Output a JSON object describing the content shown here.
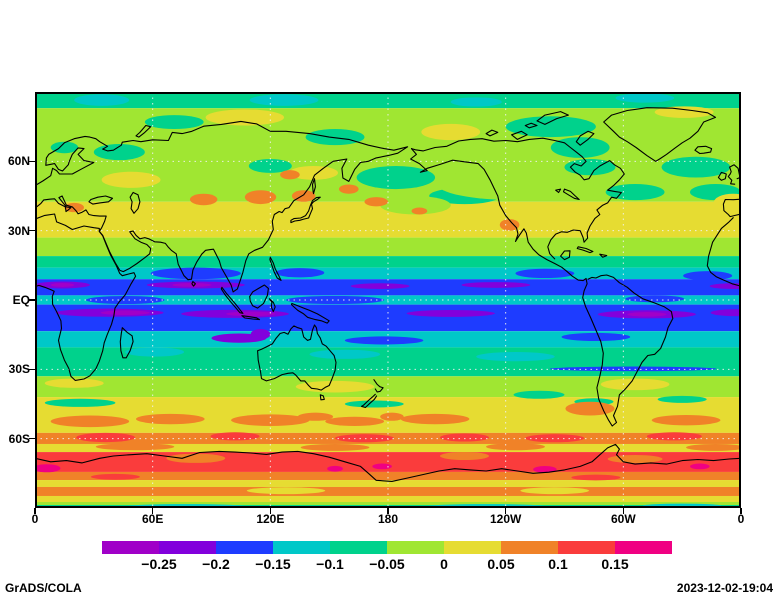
{
  "footer": {
    "left": "GrADS/COLA",
    "right": "2023-12-02-19:04"
  },
  "chart_data": {
    "type": "heatmap",
    "subtype": "filled-contour-world-map",
    "projection": {
      "lon_range": [
        0,
        360
      ],
      "lat_range": [
        -90,
        90
      ]
    },
    "x_ticks": [
      {
        "lon": 0,
        "label": "0"
      },
      {
        "lon": 60,
        "label": "60E"
      },
      {
        "lon": 120,
        "label": "120E"
      },
      {
        "lon": 180,
        "label": "180"
      },
      {
        "lon": 240,
        "label": "120W"
      },
      {
        "lon": 300,
        "label": "60W"
      },
      {
        "lon": 360,
        "label": "0"
      }
    ],
    "y_ticks": [
      {
        "lat": 60,
        "label": "60N"
      },
      {
        "lat": 30,
        "label": "30N"
      },
      {
        "lat": 0,
        "label": "EQ"
      },
      {
        "lat": -30,
        "label": "30S"
      },
      {
        "lat": -60,
        "label": "60S"
      }
    ],
    "gridlines": {
      "lons": [
        60,
        120,
        180,
        240,
        300
      ],
      "lats": [
        60,
        30,
        0,
        -30,
        -60
      ]
    },
    "colorbar": {
      "levels": [
        -0.25,
        -0.2,
        -0.15,
        -0.1,
        -0.05,
        0,
        0.05,
        0.1,
        0.15
      ],
      "labels": [
        "−0.25",
        "−0.2",
        "−0.15",
        "−0.1",
        "−0.05",
        "0",
        "0.05",
        "0.1",
        "0.15"
      ],
      "colors": [
        "#a000c8",
        "#8200dc",
        "#1e3cff",
        "#00c8c8",
        "#00d28c",
        "#a0e632",
        "#e6dc32",
        "#f08228",
        "#fa3c3c",
        "#f00082"
      ]
    },
    "zonal_bands": [
      {
        "lat_from": 90,
        "lat_to": 83,
        "value": -0.075
      },
      {
        "lat_from": 83,
        "lat_to": 42.5,
        "value": -0.025
      },
      {
        "lat_from": 42.5,
        "lat_to": 27,
        "value": 0.025
      },
      {
        "lat_from": 27,
        "lat_to": 19,
        "value": -0.025
      },
      {
        "lat_from": 19,
        "lat_to": 14,
        "value": -0.075
      },
      {
        "lat_from": 14,
        "lat_to": 9,
        "value": -0.125
      },
      {
        "lat_from": 9,
        "lat_to": 2,
        "value": -0.175
      },
      {
        "lat_from": 2,
        "lat_to": -2,
        "value": -0.125
      },
      {
        "lat_from": -2,
        "lat_to": -13.5,
        "value": -0.175
      },
      {
        "lat_from": -13.5,
        "lat_to": -20.5,
        "value": -0.125
      },
      {
        "lat_from": -20.5,
        "lat_to": -33,
        "value": -0.075
      },
      {
        "lat_from": -33,
        "lat_to": -42,
        "value": -0.025
      },
      {
        "lat_from": -42,
        "lat_to": -57.5,
        "value": 0.025
      },
      {
        "lat_from": -57.5,
        "lat_to": -62.3,
        "value": 0.075
      },
      {
        "lat_from": -62.3,
        "lat_to": -65.8,
        "value": 0.025
      },
      {
        "lat_from": -65.8,
        "lat_to": -74.4,
        "value": 0.125
      },
      {
        "lat_from": -74.4,
        "lat_to": -77.9,
        "value": 0.075
      },
      {
        "lat_from": -77.9,
        "lat_to": -80.9,
        "value": 0.025
      },
      {
        "lat_from": -80.9,
        "lat_to": -84.8,
        "value": 0.075
      },
      {
        "lat_from": -84.8,
        "lat_to": -87.4,
        "value": 0.025
      },
      {
        "lat_from": -87.4,
        "lat_to": -88.7,
        "value": -0.025
      },
      {
        "lat_from": -88.7,
        "lat_to": -90,
        "value": -0.075
      }
    ],
    "anomaly_patches": [
      {
        "lon": 34,
        "lat": 86.5,
        "w": 28,
        "h": 5,
        "value": -0.125
      },
      {
        "lon": 127,
        "lat": 86.5,
        "w": 35,
        "h": 5,
        "value": -0.125
      },
      {
        "lon": 225,
        "lat": 85.7,
        "w": 26,
        "h": 4,
        "value": -0.125
      },
      {
        "lon": 311,
        "lat": 87.4,
        "w": 30,
        "h": 4,
        "value": -0.125
      },
      {
        "lon": 43,
        "lat": 64,
        "w": 26,
        "h": 7,
        "value": -0.075
      },
      {
        "lon": 15,
        "lat": 66,
        "w": 14,
        "h": 5,
        "value": -0.075
      },
      {
        "lon": 71,
        "lat": 77,
        "w": 30,
        "h": 6,
        "value": -0.075
      },
      {
        "lon": 153,
        "lat": 70.5,
        "w": 30,
        "h": 7,
        "value": -0.075
      },
      {
        "lon": 184,
        "lat": 53,
        "w": 40,
        "h": 10,
        "value": -0.075
      },
      {
        "lon": 219,
        "lat": 45,
        "w": 36,
        "h": 7,
        "value": -0.075
      },
      {
        "lon": 263,
        "lat": 75,
        "w": 46,
        "h": 9,
        "value": -0.075
      },
      {
        "lon": 278,
        "lat": 66,
        "w": 30,
        "h": 9,
        "value": -0.075
      },
      {
        "lon": 283,
        "lat": 57.5,
        "w": 26,
        "h": 7,
        "value": -0.075
      },
      {
        "lon": 306,
        "lat": 46.7,
        "w": 30,
        "h": 7,
        "value": -0.075
      },
      {
        "lon": 337,
        "lat": 57.5,
        "w": 35,
        "h": 9,
        "value": -0.075
      },
      {
        "lon": 347,
        "lat": 46.7,
        "w": 26,
        "h": 7,
        "value": -0.075
      },
      {
        "lon": 120,
        "lat": 58,
        "w": 22,
        "h": 6,
        "value": -0.075
      },
      {
        "lon": 107,
        "lat": 79,
        "w": 40,
        "h": 7,
        "value": 0.025
      },
      {
        "lon": 212,
        "lat": 72.7,
        "w": 30,
        "h": 7,
        "value": 0.025
      },
      {
        "lon": 331,
        "lat": 81.3,
        "w": 30,
        "h": 5,
        "value": 0.025
      },
      {
        "lon": 356,
        "lat": 42,
        "w": 20,
        "h": 8,
        "value": 0.025
      },
      {
        "lon": 49,
        "lat": 52,
        "w": 30,
        "h": 7,
        "value": 0.025
      },
      {
        "lon": 142,
        "lat": 55,
        "w": 25,
        "h": 6,
        "value": 0.025
      },
      {
        "lon": 245,
        "lat": 50.2,
        "w": 80,
        "h": 14,
        "value": -0.025
      },
      {
        "lon": 194,
        "lat": 41,
        "w": 36,
        "h": 8,
        "value": -0.025
      },
      {
        "lon": 86,
        "lat": 43.5,
        "w": 14,
        "h": 5,
        "value": 0.075
      },
      {
        "lon": 115,
        "lat": 44.5,
        "w": 16,
        "h": 6,
        "value": 0.075
      },
      {
        "lon": 130,
        "lat": 54.2,
        "w": 10,
        "h": 4,
        "value": 0.075
      },
      {
        "lon": 137,
        "lat": 45,
        "w": 12,
        "h": 5,
        "value": 0.075
      },
      {
        "lon": 174,
        "lat": 42.5,
        "w": 12,
        "h": 4,
        "value": 0.075
      },
      {
        "lon": 196,
        "lat": 38.5,
        "w": 8,
        "h": 3,
        "value": 0.075
      },
      {
        "lon": 242,
        "lat": 32.5,
        "w": 10,
        "h": 5,
        "value": 0.075
      },
      {
        "lon": 20,
        "lat": 40,
        "w": 10,
        "h": 4,
        "value": 0.075
      },
      {
        "lon": 160,
        "lat": 48,
        "w": 10,
        "h": 4,
        "value": 0.075
      },
      {
        "lon": 82,
        "lat": 11.5,
        "w": 46,
        "h": 5,
        "value": -0.175
      },
      {
        "lon": 135,
        "lat": 11.8,
        "w": 25,
        "h": 4,
        "value": -0.175
      },
      {
        "lon": 260,
        "lat": 11.5,
        "w": 30,
        "h": 4,
        "value": -0.175
      },
      {
        "lon": 343,
        "lat": 10.5,
        "w": 25,
        "h": 4,
        "value": -0.175
      },
      {
        "lon": 14,
        "lat": 6.5,
        "w": 28,
        "h": 3,
        "value": -0.225
      },
      {
        "lon": 82,
        "lat": 6.5,
        "w": 50,
        "h": 3,
        "value": -0.225
      },
      {
        "lon": 176,
        "lat": 6,
        "w": 30,
        "h": 2.5,
        "value": -0.225
      },
      {
        "lon": 235,
        "lat": 6.5,
        "w": 35,
        "h": 2.5,
        "value": -0.225
      },
      {
        "lon": 356,
        "lat": 6,
        "w": 24,
        "h": 2.5,
        "value": -0.225
      },
      {
        "lon": 80,
        "lat": 6.5,
        "w": 20,
        "h": 1.7,
        "value": -0.275
      },
      {
        "lon": 14,
        "lat": 6.5,
        "w": 12,
        "h": 1.7,
        "value": -0.275
      },
      {
        "lon": 46,
        "lat": 0,
        "w": 40,
        "h": 3.5,
        "value": -0.175
      },
      {
        "lon": 153,
        "lat": 0,
        "w": 50,
        "h": 3.5,
        "value": -0.175
      },
      {
        "lon": 316,
        "lat": 0.5,
        "w": 30,
        "h": 3,
        "value": -0.175
      },
      {
        "lon": 38,
        "lat": -5.5,
        "w": 55,
        "h": 3.5,
        "value": -0.225
      },
      {
        "lon": 102,
        "lat": -6,
        "w": 55,
        "h": 3.5,
        "value": -0.225
      },
      {
        "lon": 212,
        "lat": -5.8,
        "w": 45,
        "h": 3,
        "value": -0.225
      },
      {
        "lon": 312,
        "lat": -6.2,
        "w": 50,
        "h": 3.5,
        "value": -0.225
      },
      {
        "lon": 357,
        "lat": -5.5,
        "w": 25,
        "h": 3,
        "value": -0.225
      },
      {
        "lon": 46,
        "lat": -5.5,
        "w": 25,
        "h": 2,
        "value": -0.275
      },
      {
        "lon": 110,
        "lat": -6,
        "w": 25,
        "h": 2,
        "value": -0.275
      },
      {
        "lon": 312,
        "lat": -6.2,
        "w": 20,
        "h": 2,
        "value": -0.275
      },
      {
        "lon": 104,
        "lat": -16.5,
        "w": 28,
        "h": 4,
        "value": -0.225
      },
      {
        "lon": 115,
        "lat": -14.8,
        "w": 10,
        "h": 4.5,
        "value": -0.225
      },
      {
        "lon": 178,
        "lat": -17.5,
        "w": 40,
        "h": 3.5,
        "value": -0.175
      },
      {
        "lon": 286,
        "lat": -16,
        "w": 35,
        "h": 3.5,
        "value": -0.175
      },
      {
        "lon": 305,
        "lat": -29.8,
        "w": 85,
        "h": 2,
        "value": -0.175
      },
      {
        "lon": 158,
        "lat": -23.5,
        "w": 36,
        "h": 4,
        "value": -0.125
      },
      {
        "lon": 245,
        "lat": -24.5,
        "w": 40,
        "h": 4,
        "value": -0.125
      },
      {
        "lon": 61,
        "lat": -22.5,
        "w": 30,
        "h": 4,
        "value": -0.125
      },
      {
        "lon": 153,
        "lat": -37.5,
        "w": 40,
        "h": 5,
        "value": 0.025
      },
      {
        "lon": 306,
        "lat": -36.5,
        "w": 35,
        "h": 5,
        "value": 0.025
      },
      {
        "lon": 20,
        "lat": -36,
        "w": 30,
        "h": 4,
        "value": 0.025
      },
      {
        "lon": 23,
        "lat": -44.5,
        "w": 36,
        "h": 3.5,
        "value": -0.075
      },
      {
        "lon": 173,
        "lat": -45,
        "w": 30,
        "h": 3,
        "value": -0.075
      },
      {
        "lon": 257,
        "lat": -41,
        "w": 26,
        "h": 3.5,
        "value": -0.075
      },
      {
        "lon": 285,
        "lat": -44,
        "w": 20,
        "h": 3,
        "value": -0.075
      },
      {
        "lon": 330,
        "lat": -43,
        "w": 25,
        "h": 3,
        "value": -0.075
      },
      {
        "lon": 28,
        "lat": -52.5,
        "w": 40,
        "h": 5,
        "value": 0.075
      },
      {
        "lon": 69,
        "lat": -51.5,
        "w": 35,
        "h": 4.5,
        "value": 0.075
      },
      {
        "lon": 120,
        "lat": -52,
        "w": 40,
        "h": 5,
        "value": 0.075
      },
      {
        "lon": 163,
        "lat": -52.5,
        "w": 30,
        "h": 4,
        "value": 0.075
      },
      {
        "lon": 204,
        "lat": -51.5,
        "w": 35,
        "h": 4.5,
        "value": 0.075
      },
      {
        "lon": 283,
        "lat": -47,
        "w": 25,
        "h": 6,
        "value": 0.075
      },
      {
        "lon": 143,
        "lat": -50.5,
        "w": 18,
        "h": 3.5,
        "value": 0.075
      },
      {
        "lon": 182,
        "lat": -50.5,
        "w": 12,
        "h": 3.5,
        "value": 0.075
      },
      {
        "lon": 332,
        "lat": -52,
        "w": 35,
        "h": 4.5,
        "value": 0.075
      },
      {
        "lon": 36,
        "lat": -59.5,
        "w": 30,
        "h": 4,
        "value": 0.125
      },
      {
        "lon": 102,
        "lat": -59,
        "w": 25,
        "h": 3.5,
        "value": 0.125
      },
      {
        "lon": 168,
        "lat": -59.8,
        "w": 30,
        "h": 3.5,
        "value": 0.125
      },
      {
        "lon": 219,
        "lat": -59.5,
        "w": 25,
        "h": 3.5,
        "value": 0.125
      },
      {
        "lon": 265,
        "lat": -59.8,
        "w": 30,
        "h": 3.5,
        "value": 0.125
      },
      {
        "lon": 326,
        "lat": -59,
        "w": 28,
        "h": 3.5,
        "value": 0.125
      },
      {
        "lon": 51,
        "lat": -63.5,
        "w": 40,
        "h": 3,
        "value": 0.075
      },
      {
        "lon": 153,
        "lat": -63.8,
        "w": 35,
        "h": 3,
        "value": 0.075
      },
      {
        "lon": 245,
        "lat": -63.5,
        "w": 30,
        "h": 3,
        "value": 0.075
      },
      {
        "lon": 347,
        "lat": -63.8,
        "w": 30,
        "h": 3,
        "value": 0.075
      },
      {
        "lon": 82,
        "lat": -68.5,
        "w": 30,
        "h": 4,
        "value": 0.075
      },
      {
        "lon": 219,
        "lat": -67.5,
        "w": 25,
        "h": 3.5,
        "value": 0.075
      },
      {
        "lon": 306,
        "lat": -68.8,
        "w": 28,
        "h": 3.5,
        "value": 0.075
      },
      {
        "lon": 6,
        "lat": -72.8,
        "w": 14,
        "h": 3.5,
        "value": 0.175
      },
      {
        "lon": 177,
        "lat": -72,
        "w": 10,
        "h": 2.5,
        "value": 0.175
      },
      {
        "lon": 260,
        "lat": -73.3,
        "w": 12,
        "h": 3,
        "value": 0.175
      },
      {
        "lon": 339,
        "lat": -72,
        "w": 10,
        "h": 2.5,
        "value": 0.175
      },
      {
        "lon": 153,
        "lat": -73,
        "w": 8,
        "h": 2.5,
        "value": 0.175
      },
      {
        "lon": 41,
        "lat": -76.5,
        "w": 25,
        "h": 2.5,
        "value": 0.125
      },
      {
        "lon": 286,
        "lat": -76.8,
        "w": 25,
        "h": 2.5,
        "value": 0.125
      },
      {
        "lon": 128,
        "lat": -82.5,
        "w": 40,
        "h": 3,
        "value": 0.025
      },
      {
        "lon": 265,
        "lat": -82.5,
        "w": 35,
        "h": 3,
        "value": 0.025
      },
      {
        "lon": 77,
        "lat": -89.3,
        "w": 60,
        "h": 2,
        "value": -0.125
      },
      {
        "lon": 230,
        "lat": -89.3,
        "w": 60,
        "h": 2,
        "value": -0.125
      },
      {
        "lon": 330,
        "lat": -89,
        "w": 40,
        "h": 1.8,
        "value": -0.125
      }
    ]
  }
}
